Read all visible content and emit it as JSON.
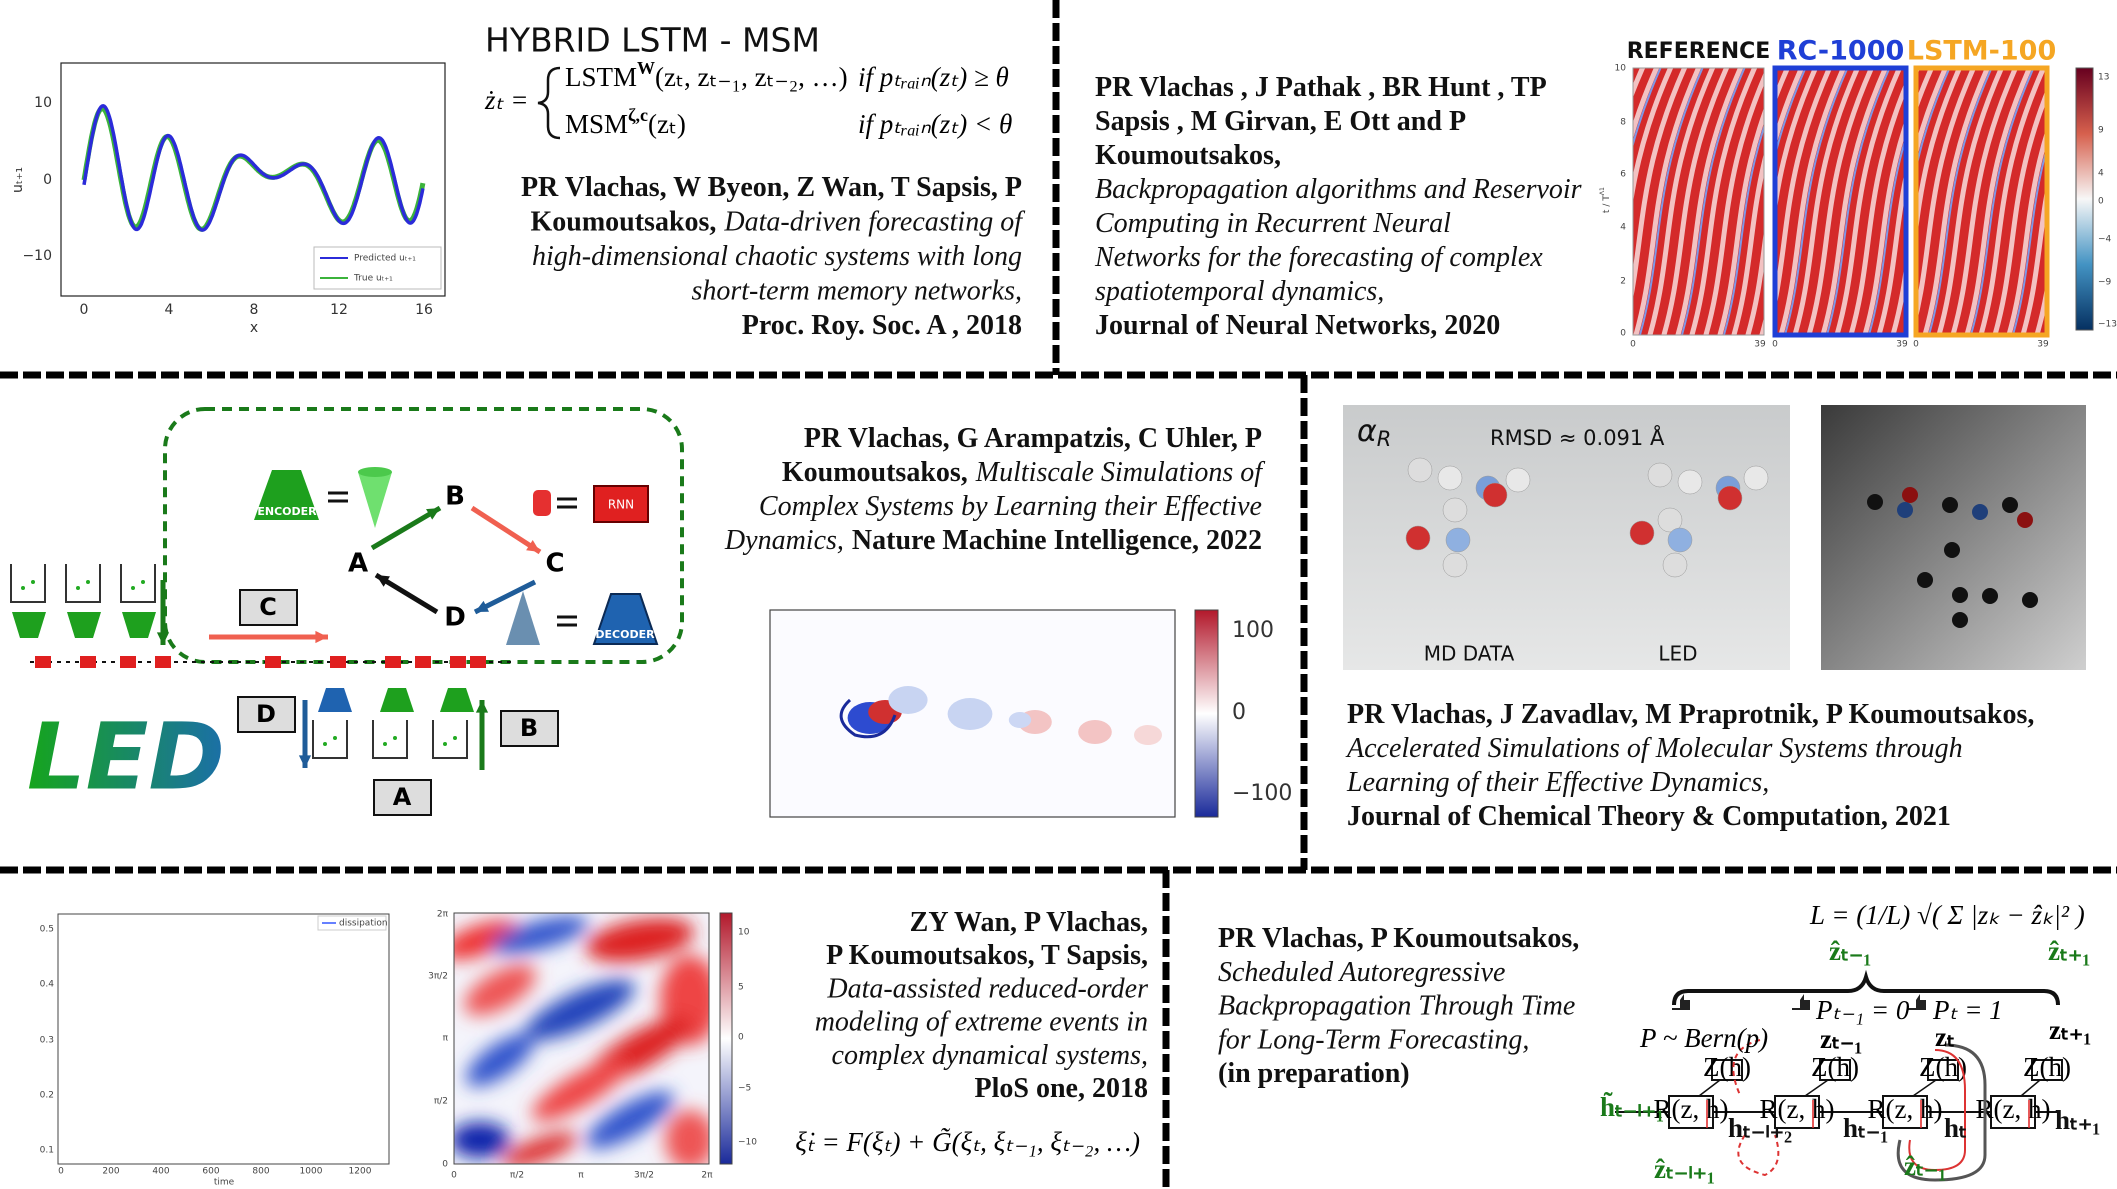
{
  "panels": [
    {
      "title": "HYBRID LSTM - MSM",
      "equation": {
        "lhs": "żₜ =",
        "cases": [
          {
            "name": "LSTM",
            "sup": "W",
            "args": "(zₜ, zₜ₋₁, zₜ₋₂, …)",
            "condition": "if pₜᵣₐᵢₙ(zₜ) ≥ θ"
          },
          {
            "name": "MSM",
            "sup": "ζ,c",
            "args": "(zₜ)",
            "condition": "if pₜᵣₐᵢₙ(zₜ) < θ"
          }
        ]
      },
      "figure": {
        "y_ticks": [
          "10",
          "0",
          "−10"
        ],
        "x_ticks": [
          "0",
          "4",
          "8",
          "12",
          "16"
        ],
        "x_label": "x",
        "y_label": "uₜ₊₁",
        "legend": [
          "Predicted uₜ₊₁",
          "True uₜ₊₁"
        ]
      },
      "citation": [
        [
          "PR Vlachas, W Byeon, Z Wan, T Sapsis, P"
        ],
        [
          "Koumoutsakos,",
          "Data-driven forecasting of"
        ],
        [
          "high-dimensional chaotic systems with long"
        ],
        [
          "short-term memory networks,"
        ],
        [
          "Proc. Roy. Soc. A , 2018"
        ]
      ]
    },
    {
      "figure": {
        "labels": [
          "REFERENCE",
          "RC-1000",
          "LSTM-100"
        ],
        "y_ticks": [
          "10",
          "8",
          "6",
          "4",
          "2",
          "0"
        ],
        "y_label": {
          "base": "t / T",
          "sup": "Λ1"
        },
        "x_ticks": [
          [
            "0",
            "39"
          ],
          [
            "0",
            "39"
          ],
          [
            "0",
            "39"
          ]
        ],
        "colorbar_ticks": [
          "13",
          "9",
          "4",
          "0",
          "−4",
          "−9",
          "−13"
        ]
      },
      "citation": [
        [
          "PR Vlachas , J Pathak , BR Hunt , TP"
        ],
        [
          "Sapsis , M Girvan, E Ott and P"
        ],
        [
          "Koumoutsakos,"
        ],
        [
          "Backpropagation algorithms and Reservoir"
        ],
        [
          "Computing in Recurrent Neural"
        ],
        [
          "Networks for the forecasting of complex"
        ],
        [
          "spatiotemporal dynamics,"
        ],
        [
          "Journal of Neural Networks, 2020"
        ]
      ]
    },
    {
      "figure": {
        "encoder": "ENCODER",
        "rnn": "RNN",
        "decoder": "DECODER",
        "nodes": [
          "A",
          "B",
          "C",
          "D"
        ],
        "boxes": [
          "C",
          "D",
          "B",
          "A"
        ],
        "logo": "LED",
        "colorbar_ticks": [
          "100",
          "0",
          "−100"
        ]
      },
      "citation": [
        [
          "PR Vlachas, G Arampatzis, C Uhler, P"
        ],
        [
          "Koumoutsakos,",
          "Multiscale Simulations of"
        ],
        [
          "Complex Systems  by Learning their Effective"
        ],
        [
          "Dynamics,",
          "Nature Machine Intelligence, 2022"
        ]
      ]
    },
    {
      "figure": {
        "alpha": {
          "base": "α",
          "sub": "R"
        },
        "rmsd": "RMSD ≈ 0.091 Å",
        "captions": [
          "MD DATA",
          "LED"
        ]
      },
      "citation": [
        [
          "PR Vlachas, J Zavadlav, M Praprotnik, P Koumoutsakos,"
        ],
        [
          "Accelerated Simulations of Molecular Systems through"
        ],
        [
          "Learning of their Effective Dynamics,"
        ],
        [
          "Journal of Chemical Theory & Computation, 2021"
        ]
      ]
    },
    {
      "figure": {
        "legend": "dissipation",
        "y_ticks": [
          "0.5",
          "0.4",
          "0.3",
          "0.2",
          "0.1"
        ],
        "x_ticks": [
          "0",
          "200",
          "400",
          "600",
          "800",
          "1000",
          "1200"
        ],
        "x_label": "time",
        "contour_y_ticks": [
          "2π",
          "3π/2",
          "π",
          "π/2",
          "0"
        ],
        "contour_x_ticks": [
          "0",
          "π/2",
          "π",
          "3π/2",
          "2π"
        ],
        "colorbar_ticks": [
          "10",
          "5",
          "0",
          "−5",
          "−10"
        ]
      },
      "equation": "ξ̇ₜ = F(ξₜ) + G̃(ξₜ, ξₜ₋₁, ξₜ₋₂, …)",
      "citation": [
        [
          "ZY Wan, P Vlachas,"
        ],
        [
          "P Koumoutsakos, T Sapsis,"
        ],
        [
          "Data-assisted reduced-order"
        ],
        [
          "modeling of extreme events in"
        ],
        [
          "complex dynamical systems,"
        ],
        [
          "PloS one, 2018"
        ]
      ]
    },
    {
      "figure": {
        "loss": "L = (1/L) √( Σ |zₖ − ẑₖ|² )",
        "blocks": [
          "R(z, h)",
          "R(z, h)",
          "R(z, h)",
          "R(z, h)"
        ],
        "readouts": [
          "Z(h)",
          "Z(h)",
          "Z(h)",
          "Z(h)"
        ],
        "sampling": "P ~ Bern(p)",
        "switches": [
          "Pₜ₋₁ = 0",
          "Pₜ = 1"
        ],
        "hidden": [
          "h̃ₜ₋ₗ₊₁",
          "hₜ₋ₗ₊₂",
          "hₜ₋₁",
          "hₜ",
          "hₜ₊₁"
        ],
        "outputs": [
          "zₜ₋₁",
          "zₜ",
          "zₜ₊₁"
        ],
        "targets": [
          "ẑₜ₋₁",
          "ẑₜ₊₁"
        ],
        "inputs": [
          "ẑₜ₋ₗ₊₁",
          "ẑₜ₋₁"
        ]
      },
      "citation": [
        [
          "PR Vlachas, P Koumoutsakos,"
        ],
        [
          "Scheduled Autoregressive"
        ],
        [
          "Backpropagation Through Time"
        ],
        [
          "for Long-Term Forecasting,"
        ],
        [
          "(in preparation)"
        ]
      ]
    }
  ]
}
